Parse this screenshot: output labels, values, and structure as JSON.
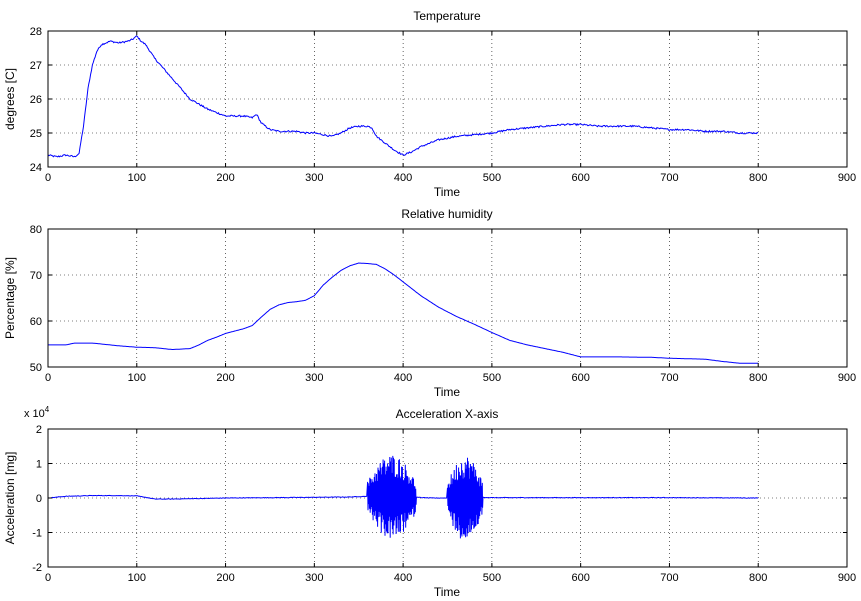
{
  "chart_data": [
    {
      "type": "line",
      "title": "Temperature",
      "xlabel": "Time",
      "ylabel": "degrees [C]",
      "xlim": [
        0,
        900
      ],
      "ylim": [
        24,
        28
      ],
      "xticks": [
        0,
        100,
        200,
        300,
        400,
        500,
        600,
        700,
        800,
        900
      ],
      "yticks": [
        24,
        25,
        26,
        27,
        28
      ],
      "grid": true,
      "color": "#0000ff",
      "series": [
        {
          "x": [
            0,
            10,
            20,
            30,
            35,
            40,
            45,
            50,
            55,
            60,
            70,
            80,
            90,
            95,
            100,
            105,
            110,
            120,
            130,
            140,
            150,
            160,
            170,
            180,
            190,
            200,
            210,
            220,
            230,
            235,
            240,
            250,
            260,
            270,
            280,
            290,
            300,
            310,
            320,
            330,
            340,
            350,
            360,
            365,
            370,
            380,
            390,
            400,
            410,
            420,
            430,
            440,
            450,
            460,
            480,
            500,
            520,
            540,
            560,
            580,
            600,
            620,
            640,
            660,
            680,
            700,
            720,
            740,
            760,
            780,
            800
          ],
          "y": [
            24.35,
            24.3,
            24.35,
            24.3,
            24.4,
            25.2,
            26.3,
            27.0,
            27.4,
            27.6,
            27.7,
            27.65,
            27.7,
            27.75,
            27.85,
            27.7,
            27.6,
            27.2,
            26.9,
            26.6,
            26.3,
            26.0,
            25.85,
            25.7,
            25.6,
            25.5,
            25.5,
            25.5,
            25.45,
            25.55,
            25.3,
            25.1,
            25.05,
            25.05,
            25.05,
            25.0,
            25.0,
            24.95,
            24.9,
            25.0,
            25.15,
            25.2,
            25.2,
            25.15,
            24.9,
            24.7,
            24.5,
            24.35,
            24.45,
            24.6,
            24.7,
            24.8,
            24.85,
            24.9,
            24.95,
            25.0,
            25.1,
            25.15,
            25.2,
            25.25,
            25.25,
            25.2,
            25.2,
            25.2,
            25.15,
            25.1,
            25.1,
            25.05,
            25.05,
            25.0,
            25.0
          ]
        }
      ]
    },
    {
      "type": "line",
      "title": "Relative humidity",
      "xlabel": "Time",
      "ylabel": "Percentage [%]",
      "xlim": [
        0,
        900
      ],
      "ylim": [
        50,
        80
      ],
      "xticks": [
        0,
        100,
        200,
        300,
        400,
        500,
        600,
        700,
        800,
        900
      ],
      "yticks": [
        50,
        60,
        70,
        80
      ],
      "grid": true,
      "color": "#0000ff",
      "series": [
        {
          "x": [
            0,
            20,
            30,
            50,
            80,
            100,
            120,
            140,
            160,
            170,
            180,
            190,
            200,
            210,
            220,
            230,
            240,
            250,
            260,
            270,
            280,
            290,
            300,
            310,
            320,
            330,
            340,
            350,
            360,
            370,
            380,
            390,
            400,
            420,
            440,
            460,
            480,
            500,
            520,
            540,
            560,
            580,
            600,
            640,
            680,
            700,
            720,
            740,
            760,
            780,
            800
          ],
          "y": [
            54.8,
            54.8,
            55.2,
            55.2,
            54.6,
            54.3,
            54.2,
            53.8,
            54.0,
            54.8,
            55.8,
            56.5,
            57.3,
            57.8,
            58.3,
            59.0,
            60.8,
            62.5,
            63.5,
            64.0,
            64.2,
            64.5,
            65.5,
            67.8,
            69.5,
            71.0,
            72.0,
            72.6,
            72.5,
            72.3,
            71.3,
            70.0,
            68.5,
            65.5,
            63.0,
            61.0,
            59.3,
            57.5,
            55.8,
            54.8,
            54.0,
            53.2,
            52.2,
            52.2,
            52.1,
            51.9,
            51.8,
            51.7,
            51.2,
            50.8,
            50.8
          ]
        }
      ]
    },
    {
      "type": "line",
      "title": "Acceleration X-axis",
      "xlabel": "Time",
      "ylabel": "Acceleration [mg]",
      "y_multiplier": "x 10",
      "y_multiplier_exponent": "4",
      "xlim": [
        0,
        900
      ],
      "ylim": [
        -2,
        2
      ],
      "xticks": [
        0,
        100,
        200,
        300,
        400,
        500,
        600,
        700,
        800,
        900
      ],
      "yticks": [
        -2,
        -1,
        0,
        1,
        2
      ],
      "grid": true,
      "color": "#0000ff",
      "bursts": [
        {
          "x_start": 360,
          "x_end": 415,
          "amplitude": 1.25
        },
        {
          "x_start": 450,
          "x_end": 490,
          "amplitude": 1.25
        }
      ],
      "series": [
        {
          "x": [
            0,
            20,
            50,
            80,
            100,
            110,
            120,
            140,
            160,
            200,
            250,
            300,
            340,
            360,
            415,
            430,
            450,
            490,
            500,
            600,
            700,
            800
          ],
          "y": [
            0.0,
            0.05,
            0.07,
            0.07,
            0.06,
            0.02,
            -0.03,
            -0.03,
            -0.02,
            0.0,
            0.01,
            0.02,
            0.03,
            0.05,
            0.02,
            0.0,
            0.0,
            0.02,
            0.01,
            0.01,
            0.01,
            0.0
          ]
        }
      ]
    }
  ]
}
